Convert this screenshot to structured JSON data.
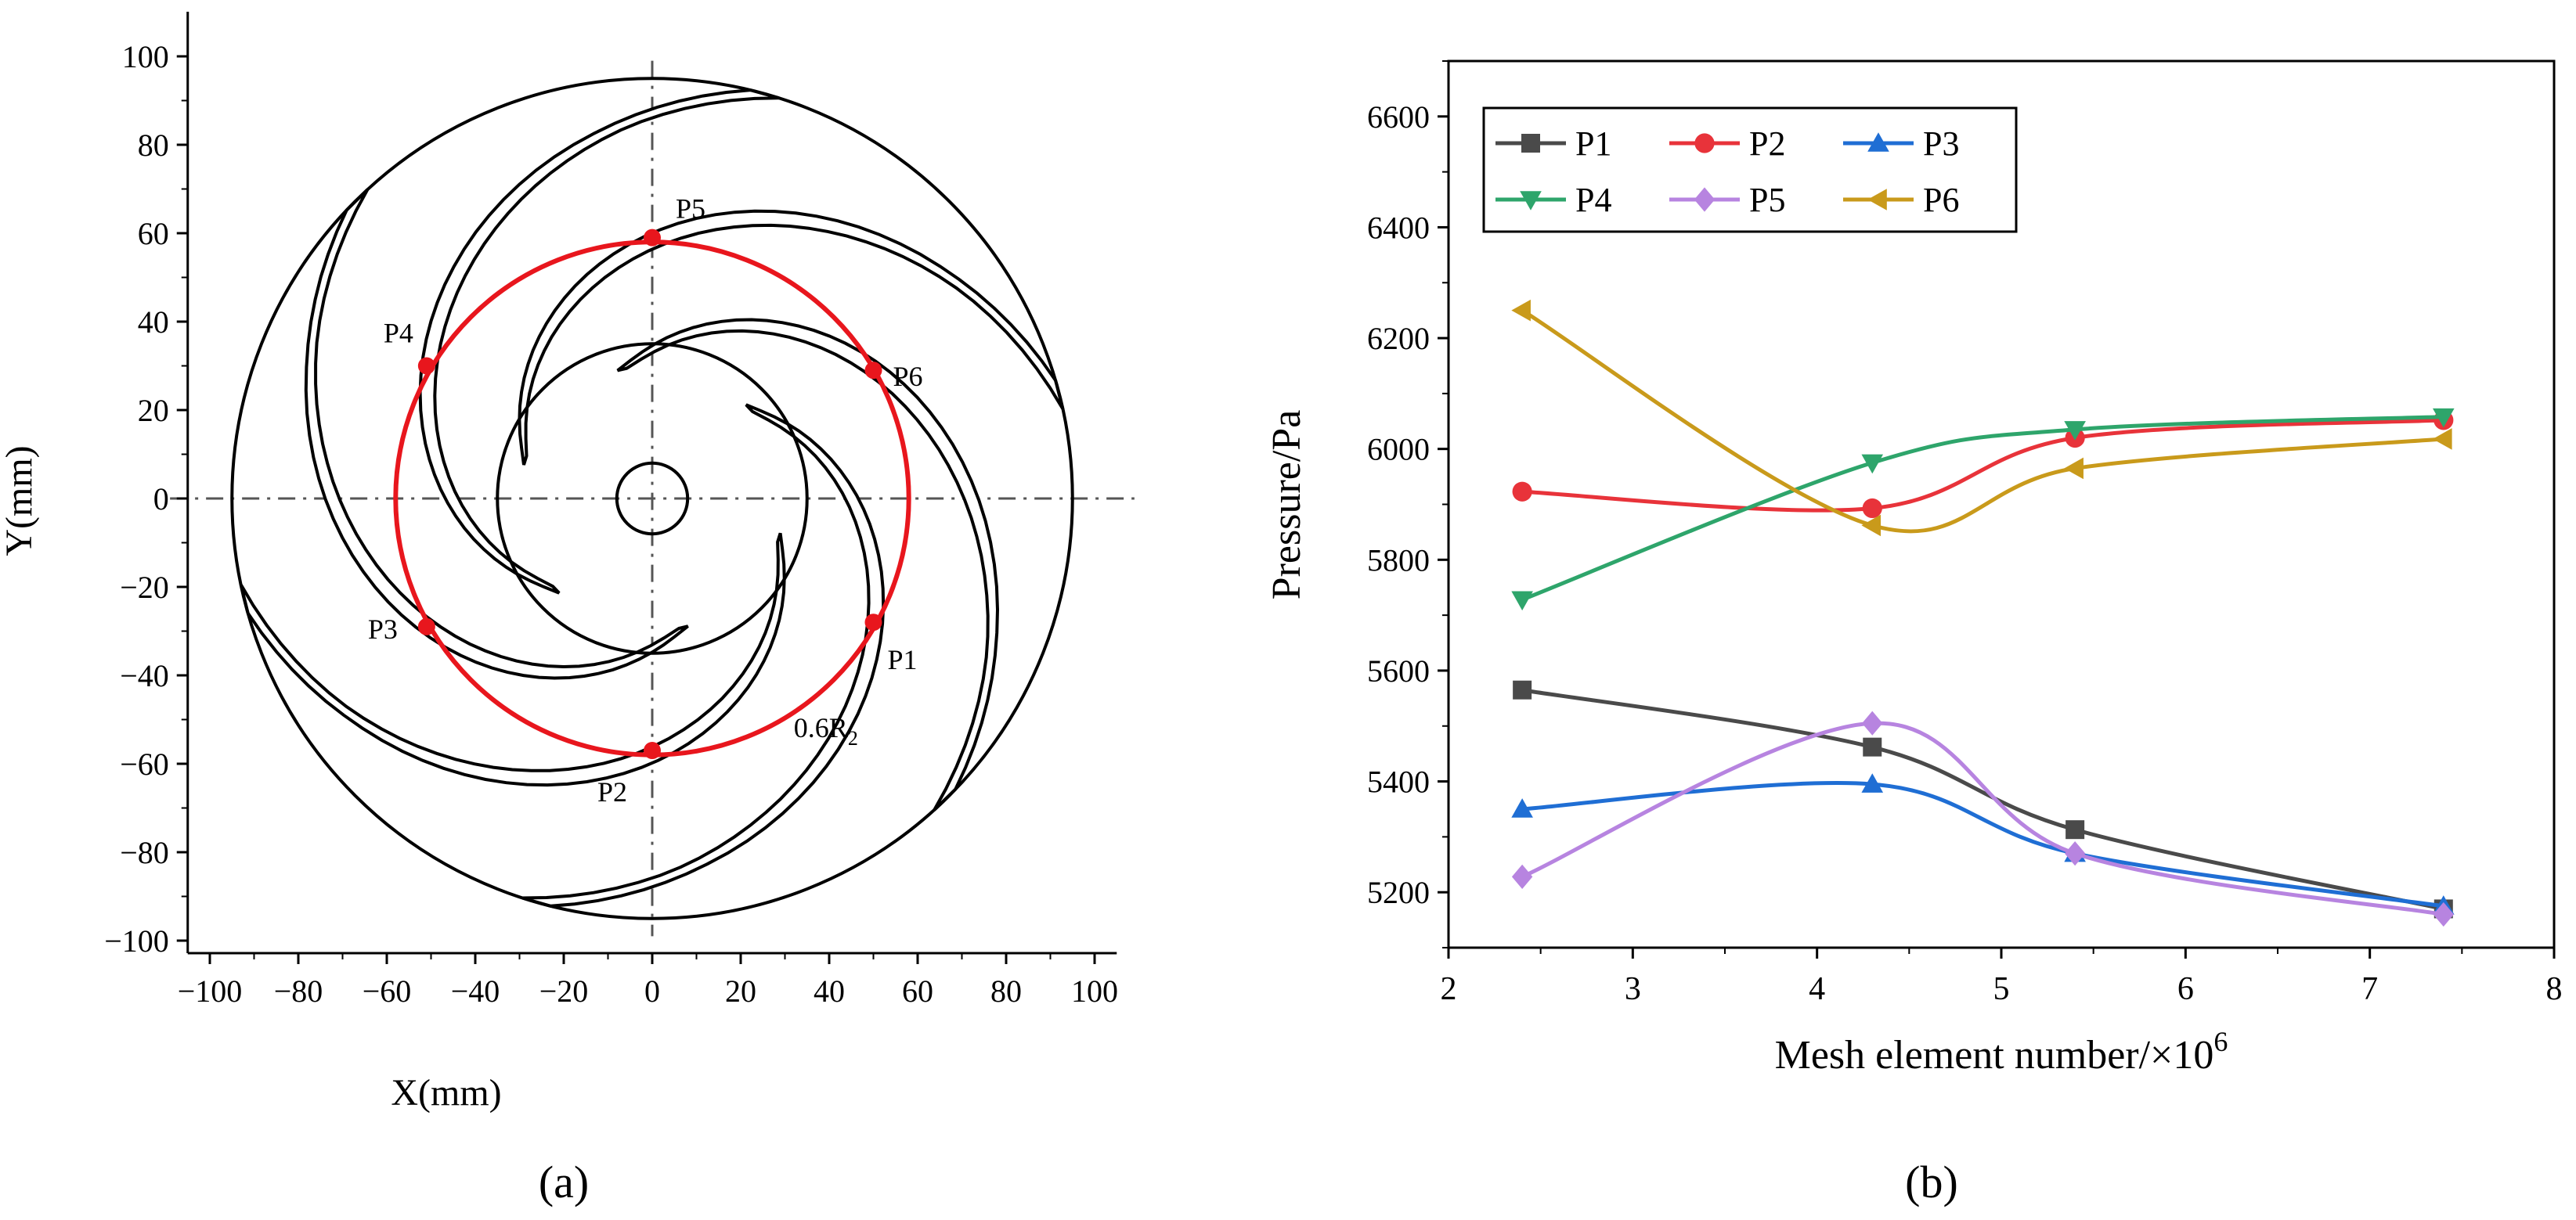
{
  "chart_data": [
    {
      "panel": "(a)",
      "type": "scatter",
      "title": "",
      "xlabel": "X(mm)",
      "ylabel": "Y(mm)",
      "xlim": [
        -105,
        105
      ],
      "ylim": [
        -105,
        105
      ],
      "xticks": [
        -100,
        -80,
        -60,
        -40,
        -20,
        0,
        20,
        40,
        60,
        80,
        100
      ],
      "yticks": [
        -100,
        -80,
        -60,
        -40,
        -20,
        0,
        20,
        40,
        60,
        80,
        100
      ],
      "impeller_outer_radius": 95,
      "hub_radius": 35,
      "shaft_radius": 8,
      "blade_count": 6,
      "monitor_circle_radius": 58,
      "monitor_circle_label": "0.6R",
      "monitor_circle_label_sub": "2",
      "monitor_circle_color": "#e8161d",
      "monitor_points": [
        {
          "name": "P1",
          "x": 50,
          "y": -28
        },
        {
          "name": "P2",
          "x": 0,
          "y": -57
        },
        {
          "name": "P3",
          "x": -51,
          "y": -29
        },
        {
          "name": "P4",
          "x": -51,
          "y": 30
        },
        {
          "name": "P5",
          "x": 0,
          "y": 59
        },
        {
          "name": "P6",
          "x": 50,
          "y": 29
        }
      ]
    },
    {
      "panel": "(b)",
      "type": "line",
      "title": "",
      "xlabel": "Mesh element number/×10",
      "xlabel_sup": "6",
      "ylabel": "Pressure/Pa",
      "xlim": [
        2,
        8
      ],
      "ylim": [
        5100,
        6700
      ],
      "xticks": [
        2,
        3,
        4,
        5,
        6,
        7,
        8
      ],
      "yticks": [
        5200,
        5400,
        5600,
        5800,
        6000,
        6200,
        6400,
        6600
      ],
      "x": [
        2.4,
        4.3,
        5.4,
        7.4
      ],
      "legend_position": "top-left",
      "series": [
        {
          "name": "P1",
          "color": "#4a4a4a",
          "marker": "square",
          "values": [
            5565,
            5462,
            5313,
            5170
          ]
        },
        {
          "name": "P2",
          "color": "#e8333a",
          "marker": "circle",
          "values": [
            5923,
            5893,
            6020,
            6052
          ]
        },
        {
          "name": "P3",
          "color": "#1f6ed4",
          "marker": "triangle-up",
          "values": [
            5350,
            5395,
            5270,
            5175
          ]
        },
        {
          "name": "P4",
          "color": "#2ea56b",
          "marker": "triangle-down",
          "values": [
            5728,
            5975,
            6035,
            6058
          ]
        },
        {
          "name": "P5",
          "color": "#b784e0",
          "marker": "diamond",
          "values": [
            5228,
            5505,
            5270,
            5160
          ]
        },
        {
          "name": "P6",
          "color": "#c99a1b",
          "marker": "triangle-left",
          "values": [
            6250,
            5862,
            5965,
            6018
          ]
        }
      ]
    }
  ]
}
